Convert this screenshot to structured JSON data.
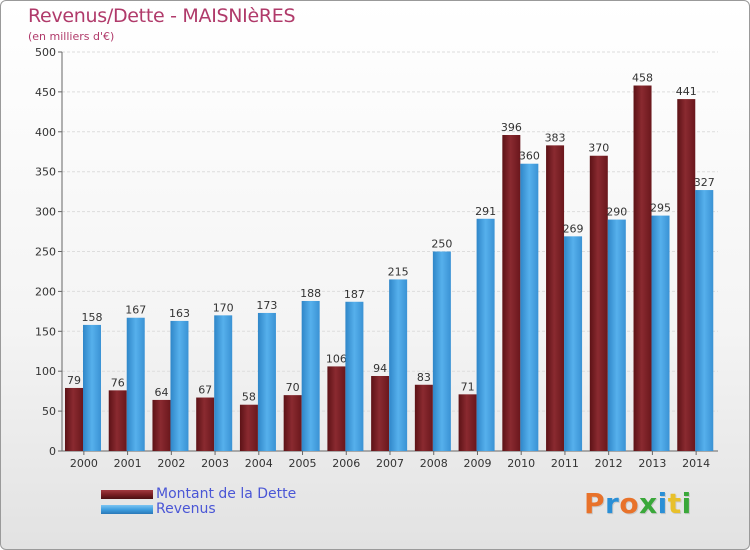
{
  "title": "Revenus/Dette - MAISNIèRES",
  "subtitle": "(en milliers d'€)",
  "colors": {
    "dette": "#7a1f24",
    "revenus": "#3f9fe0",
    "title": "#b03a6a"
  },
  "logo": {
    "letters": [
      {
        "char": "P",
        "color": "#e8722a"
      },
      {
        "char": "r",
        "color": "#2a8fd6"
      },
      {
        "char": "o",
        "color": "#e8722a"
      },
      {
        "char": "x",
        "color": "#3aa83a"
      },
      {
        "char": "i",
        "color": "#2a8fd6"
      },
      {
        "char": "t",
        "color": "#e8c02a"
      },
      {
        "char": "i",
        "color": "#3aa83a"
      }
    ]
  },
  "chart_data": {
    "type": "bar",
    "categories": [
      "2000",
      "2001",
      "2002",
      "2003",
      "2004",
      "2005",
      "2006",
      "2007",
      "2008",
      "2009",
      "2010",
      "2011",
      "2012",
      "2013",
      "2014"
    ],
    "series": [
      {
        "name": "Montant de la Dette",
        "values": [
          79,
          76,
          64,
          67,
          58,
          70,
          106,
          94,
          83,
          71,
          396,
          383,
          370,
          458,
          441
        ]
      },
      {
        "name": "Revenus",
        "values": [
          158,
          167,
          163,
          170,
          173,
          188,
          187,
          215,
          250,
          291,
          360,
          269,
          290,
          295,
          327
        ]
      }
    ],
    "title": "Revenus/Dette - MAISNIèRES",
    "ylabel": "(en milliers d'€)",
    "xlabel": "",
    "ylim": [
      0,
      500
    ],
    "yticks": [
      0,
      50,
      100,
      150,
      200,
      250,
      300,
      350,
      400,
      450,
      500
    ],
    "grid": true,
    "legend": "bottom-left"
  }
}
